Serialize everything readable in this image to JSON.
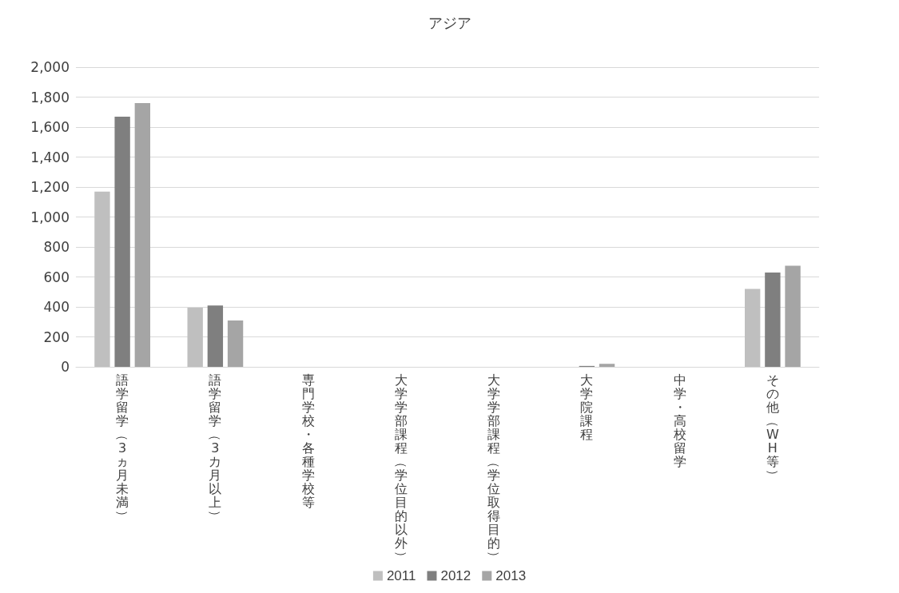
{
  "chart_data": {
    "type": "bar",
    "title": "アジア",
    "categories": [
      "語学留学（3ヵ月未満）",
      "語学留学（3カ月以上）",
      "専門学校・各種学校等",
      "大学学部課程（学位目的以外）",
      "大学学部課程（学位取得目的）",
      "大学院課程",
      "中学・高校留学",
      "その他（WH等）"
    ],
    "series": [
      {
        "name": "2011",
        "color": "#bfbfbf",
        "values": [
          1170,
          395,
          0,
          0,
          null,
          null,
          0,
          520
        ]
      },
      {
        "name": "2012",
        "color": "#7f7f7f",
        "values": [
          1670,
          410,
          0,
          0,
          null,
          6,
          0,
          630
        ]
      },
      {
        "name": "2013",
        "color": "#a5a5a5",
        "values": [
          1760,
          310,
          0,
          0,
          null,
          20,
          0,
          675
        ]
      }
    ],
    "ylim": [
      0,
      2000
    ],
    "yticks": [
      0,
      200,
      400,
      600,
      800,
      {
        "value": 1000,
        "label": "1,000"
      },
      {
        "value": 1200,
        "label": "1,200"
      },
      {
        "value": 1400,
        "label": "1,400"
      },
      {
        "value": 1600,
        "label": "1,600"
      },
      {
        "value": 1800,
        "label": "1,800"
      },
      {
        "value": 2000,
        "label": "2,000"
      }
    ],
    "grid": "y",
    "legend": "bottom"
  }
}
